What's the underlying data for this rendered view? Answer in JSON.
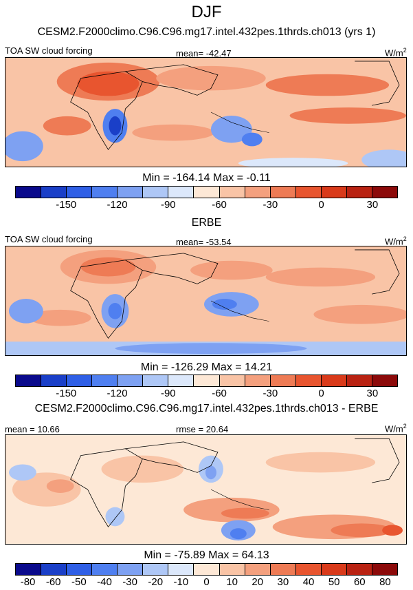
{
  "title": "DJF",
  "panel1": {
    "heading": "CESM2.F2000climo.C96.C96.mg17.intel.432pes.1thrds.ch013 (yrs 1)",
    "left_label": "TOA SW cloud forcing",
    "mean_label": "mean= -42.47",
    "units": "W/m",
    "units_exp": "2",
    "minmax": "Min = -164.14 Max =  -0.11"
  },
  "panel2": {
    "heading": "ERBE",
    "left_label": "TOA SW cloud forcing",
    "mean_label": "mean= -53.54",
    "units": "W/m",
    "units_exp": "2",
    "minmax": "Min = -126.29 Max =  14.21"
  },
  "panel3": {
    "heading": "CESM2.F2000climo.C96.C96.mg17.intel.432pes.1thrds.ch013 - ERBE",
    "left_label": "mean =  10.66",
    "mean_label": "rmse =  20.64",
    "units": "W/m",
    "units_exp": "2",
    "minmax": "Min = -75.89 Max =  64.13"
  },
  "colors": {
    "bins": [
      "#0a0a8c",
      "#1a3fc8",
      "#2f5fe6",
      "#4f7ff0",
      "#7ea1f2",
      "#aec7f6",
      "#dce8fb",
      "#fde8d6",
      "#f9c4a6",
      "#f4a07e",
      "#ee7b55",
      "#e8552f",
      "#d93a1a",
      "#b92212",
      "#8c0a0a"
    ]
  },
  "chart_data": [
    {
      "type": "heatmap",
      "title": "CESM2.F2000climo.C96.C96.mg17.intel.432pes.1thrds.ch013 (yrs 1)",
      "variable": "TOA SW cloud forcing",
      "units": "W/m2",
      "mean": -42.47,
      "min": -164.14,
      "max": -0.11,
      "colorbar_levels": [
        -165,
        -150,
        -135,
        -120,
        -105,
        -90,
        -75,
        -60,
        -45,
        -30,
        -15,
        0,
        15,
        30,
        45
      ],
      "colorbar_tick_labels": [
        "-150",
        "-120",
        "-90",
        "-60",
        "-30",
        "0",
        "30"
      ]
    },
    {
      "type": "heatmap",
      "title": "ERBE",
      "variable": "TOA SW cloud forcing",
      "units": "W/m2",
      "mean": -53.54,
      "min": -126.29,
      "max": 14.21,
      "colorbar_levels": [
        -165,
        -150,
        -135,
        -120,
        -105,
        -90,
        -75,
        -60,
        -45,
        -30,
        -15,
        0,
        15,
        30,
        45
      ],
      "colorbar_tick_labels": [
        "-150",
        "-120",
        "-90",
        "-60",
        "-30",
        "0",
        "30"
      ]
    },
    {
      "type": "heatmap",
      "title": "CESM2.F2000climo.C96.C96.mg17.intel.432pes.1thrds.ch013 - ERBE",
      "units": "W/m2",
      "mean": 10.66,
      "rmse": 20.64,
      "min": -75.89,
      "max": 64.13,
      "colorbar_levels": [
        -80,
        -60,
        -50,
        -40,
        -30,
        -20,
        -10,
        0,
        10,
        20,
        30,
        40,
        50,
        60,
        80
      ],
      "colorbar_tick_labels": [
        "-80",
        "-60",
        "-50",
        "-40",
        "-30",
        "-20",
        "-10",
        "0",
        "10",
        "20",
        "30",
        "40",
        "50",
        "60",
        "80"
      ]
    }
  ]
}
